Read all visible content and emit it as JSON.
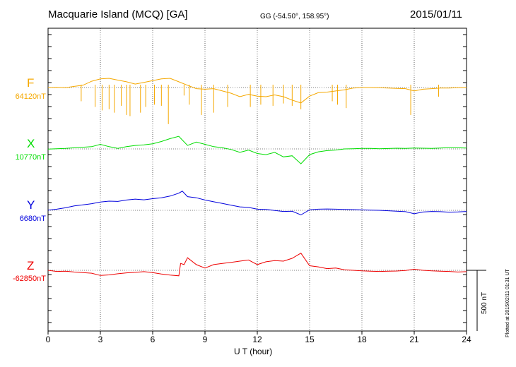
{
  "header": {
    "title": "Macquarie Island (MCQ)  [GA]",
    "coords": "GG (-54.50°, 158.95°)",
    "date": "2015/01/11"
  },
  "scale_label": "500 nT",
  "plotted_note": "Plotted at 2015/02/11 01:31  UT",
  "chart_data": {
    "type": "line",
    "xlabel": "U T (hour)",
    "xlim": [
      0,
      24
    ],
    "xticks": [
      "0",
      "3",
      "6",
      "9",
      "12",
      "15",
      "18",
      "21",
      "24"
    ],
    "grid": true,
    "scale_bar_nT": 500,
    "series": [
      {
        "name": "F",
        "baseline_label": "64120nT",
        "baseline": 64120,
        "color": "#f5a800",
        "x": [
          0,
          0.5,
          1,
          1.5,
          2,
          2.5,
          3,
          3.5,
          4,
          4.5,
          5,
          5.5,
          6,
          6.5,
          7,
          7.5,
          8,
          8.5,
          9,
          9.5,
          10,
          10.5,
          11,
          11.5,
          12,
          12.5,
          13,
          13.5,
          14,
          14.5,
          15,
          15.5,
          16,
          16.5,
          17,
          17.5,
          18,
          18.5,
          19,
          19.5,
          20,
          20.5,
          21,
          21.5,
          22,
          22.5,
          23,
          23.5,
          24
        ],
        "values": [
          64120,
          64122,
          64118,
          64130,
          64140,
          64175,
          64195,
          64200,
          64185,
          64170,
          64150,
          64165,
          64180,
          64195,
          64200,
          64170,
          64140,
          64110,
          64105,
          64110,
          64090,
          64070,
          64040,
          64060,
          64045,
          64040,
          64055,
          64040,
          64010,
          63985,
          64045,
          64075,
          64080,
          64090,
          64100,
          64115,
          64120,
          64120,
          64118,
          64115,
          64112,
          64110,
          64090,
          64105,
          64110,
          64115,
          64115,
          64118,
          64120
        ],
        "spikes_x": [
          1.9,
          2.7,
          3.1,
          3.5,
          3.8,
          4.2,
          4.5,
          4.7,
          5.3,
          5.6,
          6.1,
          6.5,
          6.9,
          7.8,
          8.1,
          8.8,
          9.5,
          10.3,
          11.6,
          12.2,
          12.9,
          13.5,
          14.0,
          14.5,
          16.3,
          16.6,
          17.1,
          20.8,
          22.4
        ],
        "spikes_value": [
          64000,
          63950,
          63920,
          63930,
          63900,
          63960,
          63880,
          63870,
          63900,
          63950,
          63970,
          63960,
          63800,
          64050,
          63970,
          63880,
          63900,
          63950,
          63950,
          63970,
          63960,
          63980,
          63960,
          63930,
          64000,
          63970,
          63940,
          63880,
          64040
        ]
      },
      {
        "name": "X",
        "baseline_label": "10770nT",
        "baseline": 10770,
        "color": "#00dd00",
        "x": [
          0,
          0.5,
          1,
          1.5,
          2,
          2.5,
          3,
          3.5,
          4,
          4.5,
          5,
          5.5,
          6,
          6.5,
          7,
          7.5,
          8,
          8.5,
          9,
          9.5,
          10,
          10.5,
          11,
          11.5,
          12,
          12.5,
          13,
          13.5,
          14,
          14.5,
          15,
          15.5,
          16,
          16.5,
          17,
          17.5,
          18,
          18.5,
          19,
          19.5,
          20,
          20.5,
          21,
          21.5,
          22,
          22.5,
          23,
          23.5,
          24
        ],
        "values": [
          10768,
          10772,
          10775,
          10780,
          10785,
          10790,
          10810,
          10790,
          10775,
          10790,
          10800,
          10805,
          10815,
          10835,
          10860,
          10880,
          10800,
          10830,
          10810,
          10790,
          10780,
          10765,
          10740,
          10760,
          10730,
          10720,
          10740,
          10700,
          10710,
          10640,
          10720,
          10745,
          10755,
          10760,
          10770,
          10772,
          10775,
          10775,
          10772,
          10774,
          10776,
          10775,
          10778,
          10776,
          10775,
          10778,
          10782,
          10780,
          10778
        ]
      },
      {
        "name": "Y",
        "baseline_label": "6680nT",
        "baseline": 6680,
        "color": "#0000dd",
        "x": [
          0,
          0.5,
          1,
          1.5,
          2,
          2.5,
          3,
          3.5,
          4,
          4.5,
          5,
          5.5,
          6,
          6.5,
          7,
          7.5,
          7.7,
          8,
          8.5,
          9,
          9.5,
          10,
          10.5,
          11,
          11.5,
          12,
          12.5,
          13,
          13.5,
          14,
          14.5,
          15,
          15.5,
          16,
          16.5,
          17,
          17.5,
          18,
          18.5,
          19,
          19.5,
          20,
          20.5,
          21,
          21.5,
          22,
          22.5,
          23,
          23.5,
          24
        ],
        "values": [
          6682,
          6690,
          6702,
          6718,
          6728,
          6738,
          6752,
          6760,
          6758,
          6770,
          6778,
          6772,
          6782,
          6790,
          6805,
          6830,
          6848,
          6800,
          6790,
          6770,
          6755,
          6740,
          6725,
          6710,
          6705,
          6690,
          6688,
          6678,
          6670,
          6672,
          6640,
          6685,
          6690,
          6692,
          6690,
          6688,
          6686,
          6684,
          6682,
          6680,
          6676,
          6672,
          6668,
          6650,
          6665,
          6670,
          6668,
          6664,
          6666,
          6670
        ]
      },
      {
        "name": "Z",
        "baseline_label": "-62850nT",
        "baseline": -62850,
        "color": "#ee0000",
        "x": [
          0,
          0.5,
          1,
          1.5,
          2,
          2.5,
          3,
          3.5,
          4,
          4.5,
          5,
          5.5,
          6,
          6.5,
          7,
          7.5,
          7.6,
          7.8,
          8,
          8.5,
          9,
          9.5,
          10,
          10.5,
          11,
          11.5,
          12,
          12.5,
          13,
          13.5,
          14,
          14.5,
          15,
          15.5,
          16,
          16.5,
          17,
          17.5,
          18,
          18.5,
          19,
          19.5,
          20,
          20.5,
          21,
          21.5,
          22,
          22.5,
          23,
          23.5,
          24
        ],
        "values": [
          -62850,
          -62860,
          -62858,
          -62865,
          -62870,
          -62875,
          -62895,
          -62890,
          -62880,
          -62872,
          -62868,
          -62862,
          -62870,
          -62882,
          -62892,
          -62898,
          -62790,
          -62800,
          -62740,
          -62800,
          -62830,
          -62800,
          -62790,
          -62780,
          -62770,
          -62760,
          -62800,
          -62775,
          -62765,
          -62770,
          -62745,
          -62700,
          -62810,
          -62820,
          -62835,
          -62830,
          -62845,
          -62850,
          -62855,
          -62858,
          -62860,
          -62858,
          -62856,
          -62852,
          -62840,
          -62850,
          -62855,
          -62858,
          -62860,
          -62865,
          -62862
        ]
      }
    ]
  }
}
